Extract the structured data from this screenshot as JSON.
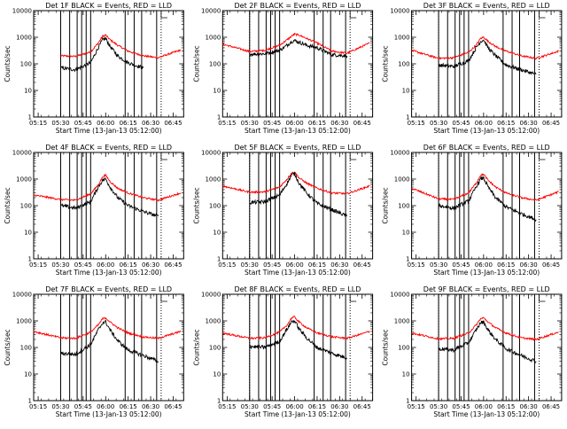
{
  "figure": {
    "rows": 3,
    "cols": 3
  },
  "colors": {
    "events": "#000000",
    "lld": "#ff0000",
    "axes": "#000000"
  },
  "chart_data": [
    {
      "type": "line",
      "title": "Det 1F BLACK = Events, RED = LLD",
      "xlabel": "Start Time (13-Jan-13 05:12:00)",
      "ylabel": "Counts/sec",
      "xlim": [
        "05:12",
        "06:52"
      ],
      "x_ticks": [
        "05:15",
        "05:30",
        "05:45",
        "06:00",
        "06:15",
        "06:30",
        "06:45"
      ],
      "y_scale": "log",
      "ylim": [
        1,
        10000
      ],
      "y_ticks": [
        "1",
        "10",
        "100",
        "1000",
        "10000"
      ],
      "x": [
        "05:12",
        "05:30",
        "05:40",
        "05:50",
        "05:55",
        "05:58",
        "06:00",
        "06:03",
        "06:08",
        "06:15",
        "06:25",
        "06:35",
        "06:50"
      ],
      "series": [
        {
          "name": "LLD",
          "color": "red",
          "values": [
            null,
            200,
            190,
            280,
            600,
            1100,
            1200,
            800,
            500,
            300,
            200,
            170,
            330
          ]
        },
        {
          "name": "Events",
          "color": "black",
          "values": [
            null,
            70,
            60,
            110,
            400,
            800,
            900,
            450,
            200,
            110,
            70,
            null,
            null
          ]
        }
      ],
      "vlines_solid": [
        "05:30",
        "05:36",
        "05:41",
        "05:44",
        "05:47",
        "05:50",
        "06:13",
        "06:19",
        "06:24",
        "06:34"
      ],
      "vlines_dotted": [
        "05:30",
        "06:37"
      ]
    },
    {
      "type": "line",
      "title": "Det 2F BLACK = Events, RED = LLD",
      "xlabel": "Start Time (13-Jan-13 05:12:00)",
      "ylabel": "Counts/sec",
      "xlim": [
        "05:12",
        "06:52"
      ],
      "x_ticks": [
        "05:15",
        "05:30",
        "05:45",
        "06:00",
        "06:15",
        "06:30",
        "06:45"
      ],
      "y_scale": "log",
      "ylim": [
        1,
        10000
      ],
      "y_ticks": [
        "1",
        "10",
        "100",
        "1000",
        "10000"
      ],
      "x": [
        "05:12",
        "05:30",
        "05:40",
        "05:50",
        "05:55",
        "05:58",
        "06:00",
        "06:03",
        "06:08",
        "06:15",
        "06:25",
        "06:35",
        "06:50"
      ],
      "series": [
        {
          "name": "LLD",
          "color": "red",
          "values": [
            550,
            290,
            320,
            500,
            800,
            1100,
            1300,
            1200,
            900,
            600,
            300,
            250,
            600
          ]
        },
        {
          "name": "Events",
          "color": "black",
          "values": [
            null,
            230,
            240,
            320,
            500,
            700,
            750,
            650,
            500,
            400,
            220,
            200,
            null
          ]
        }
      ],
      "vlines_solid": [
        "05:30",
        "05:36",
        "05:41",
        "05:44",
        "05:47",
        "05:50",
        "06:13",
        "06:19",
        "06:24",
        "06:34"
      ],
      "vlines_dotted": [
        "05:30",
        "06:37"
      ]
    },
    {
      "type": "line",
      "title": "Det 3F BLACK = Events, RED = LLD",
      "xlabel": "Start Time (13-Jan-13 05:12:00)",
      "ylabel": "Counts/sec",
      "xlim": [
        "05:12",
        "06:52"
      ],
      "x_ticks": [
        "05:15",
        "05:30",
        "05:45",
        "06:00",
        "06:15",
        "06:30",
        "06:45"
      ],
      "y_scale": "log",
      "ylim": [
        1,
        10000
      ],
      "y_ticks": [
        "1",
        "10",
        "100",
        "1000",
        "10000"
      ],
      "x": [
        "05:12",
        "05:30",
        "05:40",
        "05:50",
        "05:55",
        "05:58",
        "06:00",
        "06:03",
        "06:08",
        "06:15",
        "06:25",
        "06:35",
        "06:50"
      ],
      "series": [
        {
          "name": "LLD",
          "color": "red",
          "values": [
            320,
            160,
            170,
            270,
            500,
            900,
            1000,
            700,
            450,
            300,
            200,
            160,
            300
          ]
        },
        {
          "name": "Events",
          "color": "black",
          "values": [
            null,
            90,
            80,
            130,
            400,
            700,
            800,
            400,
            200,
            90,
            60,
            40,
            null
          ]
        }
      ],
      "vlines_solid": [
        "05:30",
        "05:36",
        "05:41",
        "05:44",
        "05:47",
        "05:50",
        "06:13",
        "06:19",
        "06:24",
        "06:34"
      ],
      "vlines_dotted": [
        "05:30",
        "06:37"
      ]
    },
    {
      "type": "line",
      "title": "Det 4F BLACK = Events, RED = LLD",
      "xlabel": "Start Time (13-Jan-13 05:12:00)",
      "ylabel": "Counts/sec",
      "xlim": [
        "05:12",
        "06:52"
      ],
      "x_ticks": [
        "05:15",
        "05:30",
        "05:45",
        "06:00",
        "06:15",
        "06:30",
        "06:45"
      ],
      "y_scale": "log",
      "ylim": [
        1,
        10000
      ],
      "y_ticks": [
        "1",
        "10",
        "100",
        "1000",
        "10000"
      ],
      "x": [
        "05:12",
        "05:30",
        "05:40",
        "05:50",
        "05:55",
        "05:58",
        "06:00",
        "06:03",
        "06:08",
        "06:15",
        "06:25",
        "06:35",
        "06:50"
      ],
      "series": [
        {
          "name": "LLD",
          "color": "red",
          "values": [
            250,
            170,
            160,
            280,
            600,
            1200,
            1400,
            800,
            450,
            300,
            200,
            160,
            300
          ]
        },
        {
          "name": "Events",
          "color": "black",
          "values": [
            null,
            100,
            80,
            140,
            500,
            900,
            1000,
            500,
            200,
            100,
            60,
            40,
            null
          ]
        }
      ],
      "vlines_solid": [
        "05:30",
        "05:36",
        "05:41",
        "05:44",
        "05:47",
        "05:50",
        "06:13",
        "06:19",
        "06:24",
        "06:34"
      ],
      "vlines_dotted": [
        "05:30",
        "06:37"
      ]
    },
    {
      "type": "line",
      "title": "Det 5F BLACK = Events, RED = LLD",
      "xlabel": "Start Time (13-Jan-13 05:12:00)",
      "ylabel": "Counts/sec",
      "xlim": [
        "05:12",
        "06:52"
      ],
      "x_ticks": [
        "05:15",
        "05:30",
        "05:45",
        "06:00",
        "06:15",
        "06:30",
        "06:45"
      ],
      "y_scale": "log",
      "ylim": [
        1,
        10000
      ],
      "y_ticks": [
        "1",
        "10",
        "100",
        "1000",
        "10000"
      ],
      "x": [
        "05:12",
        "05:30",
        "05:40",
        "05:50",
        "05:55",
        "05:58",
        "06:00",
        "06:03",
        "06:08",
        "06:15",
        "06:25",
        "06:35",
        "06:50"
      ],
      "series": [
        {
          "name": "LLD",
          "color": "red",
          "values": [
            550,
            320,
            330,
            500,
            1000,
            1700,
            1800,
            1100,
            700,
            450,
            300,
            280,
            550
          ]
        },
        {
          "name": "Events",
          "color": "black",
          "values": [
            null,
            130,
            140,
            250,
            700,
            1400,
            1600,
            700,
            300,
            120,
            70,
            40,
            null
          ]
        }
      ],
      "vlines_solid": [
        "05:30",
        "05:36",
        "05:41",
        "05:44",
        "05:47",
        "05:50",
        "06:13",
        "06:19",
        "06:24",
        "06:34"
      ],
      "vlines_dotted": [
        "05:30",
        "06:37"
      ]
    },
    {
      "type": "line",
      "title": "Det 6F BLACK = Events, RED = LLD",
      "xlabel": "Start Time (13-Jan-13 05:12:00)",
      "ylabel": "Counts/sec",
      "xlim": [
        "05:12",
        "06:52"
      ],
      "x_ticks": [
        "05:15",
        "05:30",
        "05:45",
        "06:00",
        "06:15",
        "06:30",
        "06:45"
      ],
      "y_scale": "log",
      "ylim": [
        1,
        10000
      ],
      "y_ticks": [
        "1",
        "10",
        "100",
        "1000",
        "10000"
      ],
      "x": [
        "05:12",
        "05:30",
        "05:40",
        "05:50",
        "05:55",
        "05:58",
        "06:00",
        "06:03",
        "06:08",
        "06:15",
        "06:25",
        "06:35",
        "06:50"
      ],
      "series": [
        {
          "name": "LLD",
          "color": "red",
          "values": [
            450,
            180,
            170,
            300,
            700,
            1400,
            1500,
            900,
            500,
            300,
            200,
            160,
            330
          ]
        },
        {
          "name": "Events",
          "color": "black",
          "values": [
            null,
            100,
            80,
            150,
            500,
            1000,
            1100,
            500,
            200,
            90,
            50,
            30,
            null
          ]
        }
      ],
      "vlines_solid": [
        "05:30",
        "05:36",
        "05:41",
        "05:44",
        "05:47",
        "05:50",
        "06:13",
        "06:19",
        "06:24",
        "06:34"
      ],
      "vlines_dotted": [
        "05:30",
        "06:37"
      ]
    },
    {
      "type": "line",
      "title": "Det 7F BLACK = Events, RED = LLD",
      "xlabel": "Start Time (13-Jan-13 05:12:00)",
      "ylabel": "Counts/sec",
      "xlim": [
        "05:12",
        "06:52"
      ],
      "x_ticks": [
        "05:15",
        "05:30",
        "05:45",
        "06:00",
        "06:15",
        "06:30",
        "06:45"
      ],
      "y_scale": "log",
      "ylim": [
        1,
        10000
      ],
      "y_ticks": [
        "1",
        "10",
        "100",
        "1000",
        "10000"
      ],
      "x": [
        "05:12",
        "05:30",
        "05:40",
        "05:50",
        "05:55",
        "05:58",
        "06:00",
        "06:03",
        "06:08",
        "06:15",
        "06:25",
        "06:35",
        "06:50"
      ],
      "series": [
        {
          "name": "LLD",
          "color": "red",
          "values": [
            400,
            230,
            220,
            380,
            700,
            1200,
            1300,
            900,
            550,
            350,
            250,
            220,
            400
          ]
        },
        {
          "name": "Events",
          "color": "black",
          "values": [
            null,
            60,
            55,
            130,
            450,
            850,
            900,
            450,
            180,
            80,
            50,
            30,
            null
          ]
        }
      ],
      "vlines_solid": [
        "05:30",
        "05:36",
        "05:41",
        "05:44",
        "05:47",
        "05:50",
        "06:13",
        "06:19",
        "06:24",
        "06:34"
      ],
      "vlines_dotted": [
        "05:30",
        "06:37"
      ]
    },
    {
      "type": "line",
      "title": "Det 8F BLACK = Events, RED = LLD",
      "xlabel": "Start Time (13-Jan-13 05:12:00)",
      "ylabel": "Counts/sec",
      "xlim": [
        "05:12",
        "06:52"
      ],
      "x_ticks": [
        "05:15",
        "05:30",
        "05:45",
        "06:00",
        "06:15",
        "06:30",
        "06:45"
      ],
      "y_scale": "log",
      "ylim": [
        1,
        10000
      ],
      "y_ticks": [
        "1",
        "10",
        "100",
        "1000",
        "10000"
      ],
      "x": [
        "05:12",
        "05:30",
        "05:40",
        "05:50",
        "05:55",
        "05:58",
        "06:00",
        "06:03",
        "06:08",
        "06:15",
        "06:25",
        "06:35",
        "06:50"
      ],
      "series": [
        {
          "name": "LLD",
          "color": "red",
          "values": [
            350,
            220,
            230,
            380,
            700,
            1300,
            1400,
            900,
            550,
            350,
            250,
            220,
            400
          ]
        },
        {
          "name": "Events",
          "color": "black",
          "values": [
            null,
            110,
            100,
            170,
            500,
            950,
            1000,
            500,
            230,
            100,
            60,
            40,
            null
          ]
        }
      ],
      "vlines_solid": [
        "05:30",
        "05:36",
        "05:41",
        "05:44",
        "05:47",
        "05:50",
        "06:13",
        "06:19",
        "06:24",
        "06:34"
      ],
      "vlines_dotted": [
        "05:30",
        "06:37"
      ]
    },
    {
      "type": "line",
      "title": "Det 9F BLACK = Events, RED = LLD",
      "xlabel": "Start Time (13-Jan-13 05:12:00)",
      "ylabel": "Counts/sec",
      "xlim": [
        "05:12",
        "06:52"
      ],
      "x_ticks": [
        "05:15",
        "05:30",
        "05:45",
        "06:00",
        "06:15",
        "06:30",
        "06:45"
      ],
      "y_scale": "log",
      "ylim": [
        1,
        10000
      ],
      "y_ticks": [
        "1",
        "10",
        "100",
        "1000",
        "10000"
      ],
      "x": [
        "05:12",
        "05:30",
        "05:40",
        "05:50",
        "05:55",
        "05:58",
        "06:00",
        "06:03",
        "06:08",
        "06:15",
        "06:25",
        "06:35",
        "06:50"
      ],
      "series": [
        {
          "name": "LLD",
          "color": "red",
          "values": [
            350,
            210,
            220,
            350,
            700,
            1200,
            1300,
            900,
            550,
            350,
            230,
            200,
            380
          ]
        },
        {
          "name": "Events",
          "color": "black",
          "values": [
            null,
            90,
            80,
            150,
            450,
            850,
            900,
            450,
            200,
            90,
            50,
            30,
            null
          ]
        }
      ],
      "vlines_solid": [
        "05:30",
        "05:36",
        "05:41",
        "05:44",
        "05:47",
        "05:50",
        "06:13",
        "06:19",
        "06:24",
        "06:34"
      ],
      "vlines_dotted": [
        "05:30",
        "06:37"
      ]
    }
  ]
}
